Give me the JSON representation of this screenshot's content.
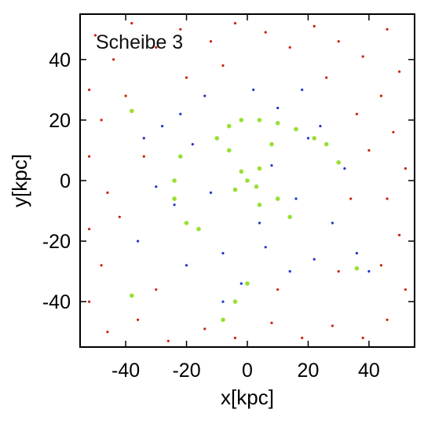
{
  "chart_data": {
    "type": "scatter",
    "panel_label": "Scheibe 3",
    "xlabel": "x[kpc]",
    "ylabel": "y[kpc]",
    "xlim": [
      -55,
      55
    ],
    "ylim": [
      -55,
      55
    ],
    "x_ticks": [
      -40,
      -20,
      0,
      20,
      40
    ],
    "y_ticks": [
      -40,
      -20,
      0,
      20,
      40
    ],
    "x_tick_labels": [
      "-40",
      "-20",
      "0",
      "20",
      "40"
    ],
    "y_tick_labels": [
      "-40",
      "-20",
      "0",
      "20",
      "40"
    ],
    "grid": false,
    "legend": "none",
    "series": [
      {
        "color": "#cc2200",
        "distribution": "uniform halo across full field",
        "points": [
          [
            -50,
            48
          ],
          [
            -44,
            40
          ],
          [
            -38,
            52
          ],
          [
            -30,
            44
          ],
          [
            -22,
            50
          ],
          [
            -12,
            46
          ],
          [
            -4,
            52
          ],
          [
            6,
            49
          ],
          [
            14,
            44
          ],
          [
            22,
            51
          ],
          [
            30,
            46
          ],
          [
            38,
            41
          ],
          [
            46,
            50
          ],
          [
            50,
            36
          ],
          [
            44,
            28
          ],
          [
            36,
            22
          ],
          [
            48,
            16
          ],
          [
            52,
            4
          ],
          [
            46,
            -6
          ],
          [
            50,
            -18
          ],
          [
            44,
            -28
          ],
          [
            52,
            -36
          ],
          [
            46,
            -46
          ],
          [
            38,
            -52
          ],
          [
            28,
            -48
          ],
          [
            18,
            -52
          ],
          [
            8,
            -47
          ],
          [
            -4,
            -52
          ],
          [
            -14,
            -49
          ],
          [
            -26,
            -53
          ],
          [
            -36,
            -46
          ],
          [
            -46,
            -50
          ],
          [
            -52,
            -40
          ],
          [
            -48,
            -28
          ],
          [
            -52,
            -16
          ],
          [
            -46,
            -4
          ],
          [
            -52,
            8
          ],
          [
            -48,
            20
          ],
          [
            -52,
            30
          ],
          [
            -40,
            28
          ],
          [
            -34,
            8
          ],
          [
            -42,
            -12
          ],
          [
            -30,
            -36
          ],
          [
            34,
            -6
          ],
          [
            40,
            10
          ],
          [
            26,
            34
          ],
          [
            -20,
            34
          ],
          [
            10,
            -36
          ],
          [
            -8,
            38
          ],
          [
            30,
            -30
          ]
        ]
      },
      {
        "color": "#2233cc",
        "distribution": "spiral disk, r < 45 kpc",
        "points": [
          [
            0,
            0
          ],
          [
            8,
            5
          ],
          [
            -6,
            10
          ],
          [
            -12,
            -4
          ],
          [
            4,
            -14
          ],
          [
            16,
            -6
          ],
          [
            -18,
            12
          ],
          [
            20,
            14
          ],
          [
            -24,
            -8
          ],
          [
            10,
            24
          ],
          [
            -8,
            -24
          ],
          [
            -28,
            18
          ],
          [
            28,
            -14
          ],
          [
            22,
            -26
          ],
          [
            -20,
            -28
          ],
          [
            -30,
            -2
          ],
          [
            32,
            4
          ],
          [
            2,
            30
          ],
          [
            -14,
            28
          ],
          [
            14,
            -30
          ],
          [
            -34,
            14
          ],
          [
            36,
            -24
          ],
          [
            -8,
            -40
          ],
          [
            40,
            -30
          ],
          [
            24,
            18
          ],
          [
            -36,
            -20
          ],
          [
            -2,
            -34
          ],
          [
            18,
            30
          ],
          [
            -22,
            22
          ],
          [
            6,
            -22
          ]
        ]
      },
      {
        "color": "#99e033",
        "distribution": "bulge, spiral arm clumps and satellites",
        "points": [
          [
            0,
            0
          ],
          [
            -2,
            3
          ],
          [
            3,
            -2
          ],
          [
            -4,
            -3
          ],
          [
            4,
            4
          ],
          [
            -6,
            18
          ],
          [
            -2,
            20
          ],
          [
            4,
            20
          ],
          [
            10,
            19
          ],
          [
            16,
            17
          ],
          [
            22,
            14
          ],
          [
            26,
            12
          ],
          [
            30,
            6
          ],
          [
            -22,
            8
          ],
          [
            -24,
            0
          ],
          [
            -24,
            -6
          ],
          [
            -20,
            -14
          ],
          [
            -16,
            -16
          ],
          [
            -10,
            14
          ],
          [
            -6,
            10
          ],
          [
            4,
            -8
          ],
          [
            10,
            -6
          ],
          [
            14,
            -12
          ],
          [
            -38,
            23
          ],
          [
            -38,
            -38
          ],
          [
            36,
            -29
          ],
          [
            -4,
            -40
          ],
          [
            0,
            -34
          ],
          [
            -8,
            -46
          ],
          [
            8,
            12
          ]
        ]
      }
    ]
  }
}
